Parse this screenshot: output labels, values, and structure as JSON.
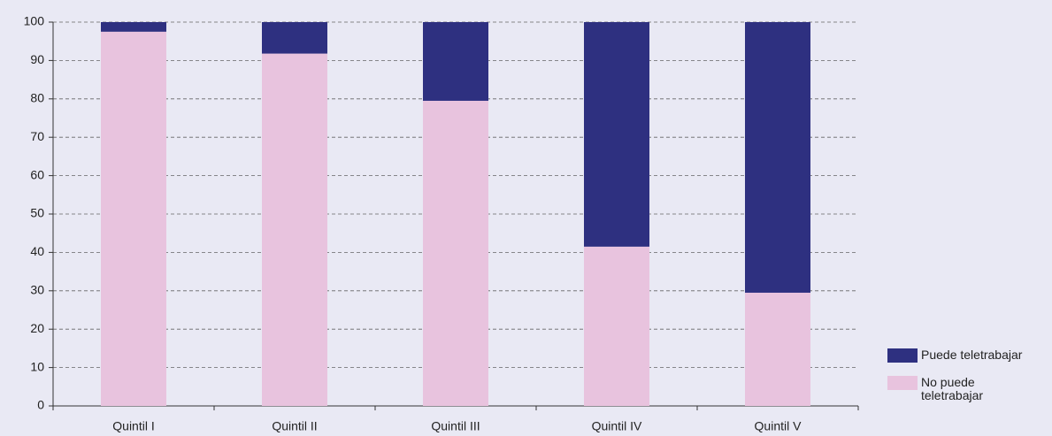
{
  "chart_data": {
    "type": "stacked_bar",
    "categories": [
      "Quintil I",
      "Quintil II",
      "Quintil III",
      "Quintil IV",
      "Quintil V"
    ],
    "series": [
      {
        "name": "Puede teletrabajar",
        "color": "#2e3080",
        "values": [
          2.5,
          8.2,
          20.5,
          58.5,
          70.5
        ]
      },
      {
        "name": "No puede teletrabajar",
        "color": "#e8c3de",
        "values": [
          97.5,
          91.8,
          79.5,
          41.5,
          29.5
        ]
      }
    ],
    "ylim": [
      0,
      100
    ],
    "yticks": [
      0,
      10,
      20,
      30,
      40,
      50,
      60,
      70,
      80,
      90,
      100
    ],
    "grid": true,
    "legend": "right"
  }
}
